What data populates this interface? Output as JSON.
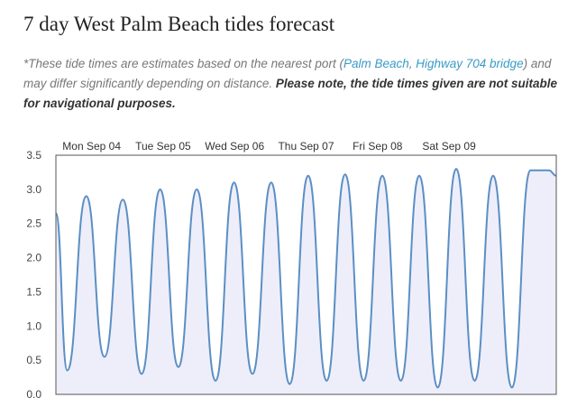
{
  "page": {
    "title": "7 day West Palm Beach tides forecast"
  },
  "note": {
    "intro": "*These tide times are estimates based on the nearest port (",
    "link_1": "Palm Beach",
    "sep": ", ",
    "link_2": "Highway 704 bridge",
    "outro": ") and may differ significantly depending on distance. ",
    "warning": "Please note, the tide times given are not suitable for navigational purposes."
  },
  "colors": {
    "line": "#5b8fc4",
    "fill": "#eeeefa",
    "axis": "#555555",
    "link": "#3a9bc4"
  },
  "chart_data": {
    "type": "area",
    "title": "",
    "xlabel": "",
    "ylabel": "",
    "ylim": [
      0,
      3.5
    ],
    "yticks": [
      "3.5",
      "3.0",
      "2.5",
      "2.0",
      "1.5",
      "1.0",
      "0.5",
      "0.0"
    ],
    "ytick_values": [
      3.5,
      3.0,
      2.5,
      2.0,
      1.5,
      1.0,
      0.5,
      0.0
    ],
    "day_labels": [
      "Mon Sep 04",
      "Tue Sep 05",
      "Wed Sep 06",
      "Thu Sep 07",
      "Fri Sep 08",
      "Sat Sep 09"
    ],
    "grid": false,
    "legend": "none",
    "units_x": "hours from start of forecast",
    "series": [
      {
        "x": [
          0,
          3.8,
          10.2,
          16.3,
          22.5,
          28.8,
          35.0,
          41.1,
          47.3,
          53.6,
          59.8,
          66.0,
          72.3,
          78.5,
          84.7,
          90.9,
          97.1,
          103.3,
          109.6,
          115.8,
          122.0,
          128.2,
          134.4,
          140.6,
          146.8,
          153.1,
          159.3,
          165.5,
          168
        ],
        "values": [
          2.65,
          0.35,
          2.9,
          0.55,
          2.85,
          0.3,
          3.0,
          0.4,
          3.0,
          0.2,
          3.1,
          0.3,
          3.1,
          0.15,
          3.2,
          0.2,
          3.22,
          0.2,
          3.2,
          0.2,
          3.2,
          0.1,
          3.3,
          0.2,
          3.2,
          0.1,
          3.28,
          3.28,
          3.2
        ]
      }
    ]
  }
}
